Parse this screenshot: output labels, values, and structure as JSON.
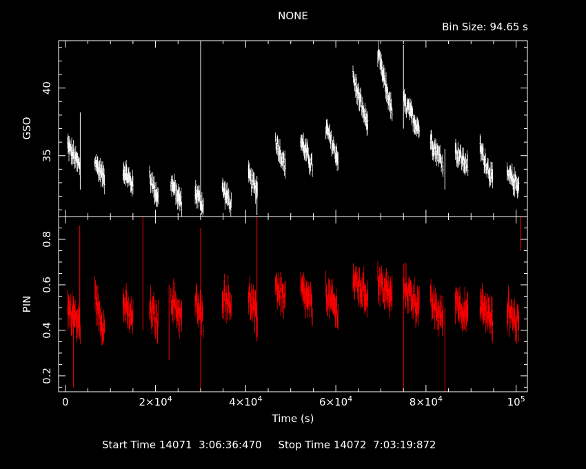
{
  "header": {
    "title": "NONE",
    "bin_size": "Bin Size: 94.65 s"
  },
  "footer": {
    "times": "Start Time 14071  3:06:36:470     Stop Time 14072  7:03:19:872"
  },
  "colors": {
    "gso": "#ffffff",
    "pin": "#ff0000",
    "axes": "#ffffff",
    "background": "#000000"
  },
  "chart_data": [
    {
      "type": "scatter",
      "name": "GSO",
      "xlabel": "",
      "ylabel": "GSO",
      "xlim": [
        -1500,
        102500
      ],
      "ylim": [
        30.5,
        43.5
      ],
      "y_ticks": [
        {
          "v": 35,
          "label": "35"
        },
        {
          "v": 40,
          "label": "40"
        }
      ],
      "x_ticks": [],
      "orbit_segments": [
        {
          "x0": 500,
          "x1": 3300,
          "y0": 35.8,
          "y1": 34.1
        },
        {
          "x0": 6500,
          "x1": 8700,
          "y0": 34.6,
          "y1": 33.3
        },
        {
          "x0": 12800,
          "x1": 15000,
          "y0": 34.0,
          "y1": 32.8
        },
        {
          "x0": 18700,
          "x1": 20600,
          "y0": 33.5,
          "y1": 31.8
        },
        {
          "x0": 23400,
          "x1": 25800,
          "y0": 33.0,
          "y1": 31.5
        },
        {
          "x0": 28800,
          "x1": 30600,
          "y0": 32.3,
          "y1": 31.3
        },
        {
          "x0": 34800,
          "x1": 36800,
          "y0": 32.6,
          "y1": 31.4
        },
        {
          "x0": 40600,
          "x1": 42600,
          "y0": 33.5,
          "y1": 32.4
        },
        {
          "x0": 46600,
          "x1": 48800,
          "y0": 36.2,
          "y1": 34.2
        },
        {
          "x0": 52200,
          "x1": 54800,
          "y0": 36.2,
          "y1": 34.2
        },
        {
          "x0": 57800,
          "x1": 60500,
          "y0": 37.0,
          "y1": 34.8
        },
        {
          "x0": 63800,
          "x1": 67100,
          "y0": 40.8,
          "y1": 37.2
        },
        {
          "x0": 69300,
          "x1": 72500,
          "y0": 42.5,
          "y1": 38.2
        },
        {
          "x0": 75000,
          "x1": 78500,
          "y0": 39.0,
          "y1": 37.0
        },
        {
          "x0": 81000,
          "x1": 83800,
          "y0": 36.2,
          "y1": 34.4
        },
        {
          "x0": 86500,
          "x1": 89300,
          "y0": 35.4,
          "y1": 34.2
        },
        {
          "x0": 92000,
          "x1": 94800,
          "y0": 35.6,
          "y1": 33.2
        },
        {
          "x0": 98000,
          "x1": 100600,
          "y0": 33.6,
          "y1": 32.8
        }
      ],
      "spikes": [
        {
          "x": 3300,
          "y0": 32.5,
          "y1": 38.2
        },
        {
          "x": 30000,
          "y0": 31.0,
          "y1": 43.3
        },
        {
          "x": 42500,
          "y0": 30.6,
          "y1": 33.5
        },
        {
          "x": 75000,
          "y0": 37.0,
          "y1": 43.2
        },
        {
          "x": 84200,
          "y0": 32.5,
          "y1": 35.5
        }
      ]
    },
    {
      "type": "scatter",
      "name": "PIN",
      "xlabel": "Time (s)",
      "ylabel": "PIN",
      "xlim": [
        -1500,
        102500
      ],
      "ylim": [
        0.13,
        0.9
      ],
      "y_ticks": [
        {
          "v": 0.2,
          "label": "0.2"
        },
        {
          "v": 0.4,
          "label": "0.4"
        },
        {
          "v": 0.6,
          "label": "0.6"
        },
        {
          "v": 0.8,
          "label": "0.8"
        }
      ],
      "x_ticks": [
        {
          "v": 0,
          "label": "0",
          "sup": ""
        },
        {
          "v": 20000,
          "label": "2×10",
          "sup": "4"
        },
        {
          "v": 40000,
          "label": "4×10",
          "sup": "4"
        },
        {
          "v": 60000,
          "label": "6×10",
          "sup": "4"
        },
        {
          "v": 80000,
          "label": "8×10",
          "sup": "4"
        },
        {
          "v": 100000,
          "label": "10",
          "sup": "5"
        }
      ],
      "orbit_segments": [
        {
          "x0": 500,
          "x1": 3300,
          "y0": 0.5,
          "y1": 0.42
        },
        {
          "x0": 6500,
          "x1": 8700,
          "y0": 0.55,
          "y1": 0.4
        },
        {
          "x0": 12800,
          "x1": 15000,
          "y0": 0.52,
          "y1": 0.44
        },
        {
          "x0": 18700,
          "x1": 20600,
          "y0": 0.5,
          "y1": 0.43
        },
        {
          "x0": 23400,
          "x1": 25800,
          "y0": 0.55,
          "y1": 0.45
        },
        {
          "x0": 28800,
          "x1": 30600,
          "y0": 0.53,
          "y1": 0.44
        },
        {
          "x0": 34800,
          "x1": 36800,
          "y0": 0.56,
          "y1": 0.52
        },
        {
          "x0": 40600,
          "x1": 42600,
          "y0": 0.55,
          "y1": 0.45
        },
        {
          "x0": 46600,
          "x1": 48800,
          "y0": 0.6,
          "y1": 0.53
        },
        {
          "x0": 52200,
          "x1": 54800,
          "y0": 0.58,
          "y1": 0.5
        },
        {
          "x0": 57800,
          "x1": 60500,
          "y0": 0.56,
          "y1": 0.48
        },
        {
          "x0": 63800,
          "x1": 67100,
          "y0": 0.62,
          "y1": 0.55
        },
        {
          "x0": 69300,
          "x1": 72500,
          "y0": 0.62,
          "y1": 0.54
        },
        {
          "x0": 75000,
          "x1": 78500,
          "y0": 0.6,
          "y1": 0.5
        },
        {
          "x0": 81000,
          "x1": 83800,
          "y0": 0.52,
          "y1": 0.45
        },
        {
          "x0": 86500,
          "x1": 89300,
          "y0": 0.54,
          "y1": 0.46
        },
        {
          "x0": 92000,
          "x1": 94800,
          "y0": 0.52,
          "y1": 0.44
        },
        {
          "x0": 98000,
          "x1": 100600,
          "y0": 0.5,
          "y1": 0.42
        }
      ],
      "spikes": [
        {
          "x": 1800,
          "y0": 0.15,
          "y1": 0.55
        },
        {
          "x": 3200,
          "y0": 0.4,
          "y1": 0.86
        },
        {
          "x": 17200,
          "y0": 0.4,
          "y1": 0.9
        },
        {
          "x": 23000,
          "y0": 0.27,
          "y1": 0.6
        },
        {
          "x": 30000,
          "y0": 0.13,
          "y1": 0.85
        },
        {
          "x": 42500,
          "y0": 0.35,
          "y1": 0.9
        },
        {
          "x": 75000,
          "y0": 0.13,
          "y1": 0.55
        },
        {
          "x": 84200,
          "y0": 0.13,
          "y1": 0.5
        },
        {
          "x": 101000,
          "y0": 0.75,
          "y1": 0.9
        }
      ]
    }
  ]
}
